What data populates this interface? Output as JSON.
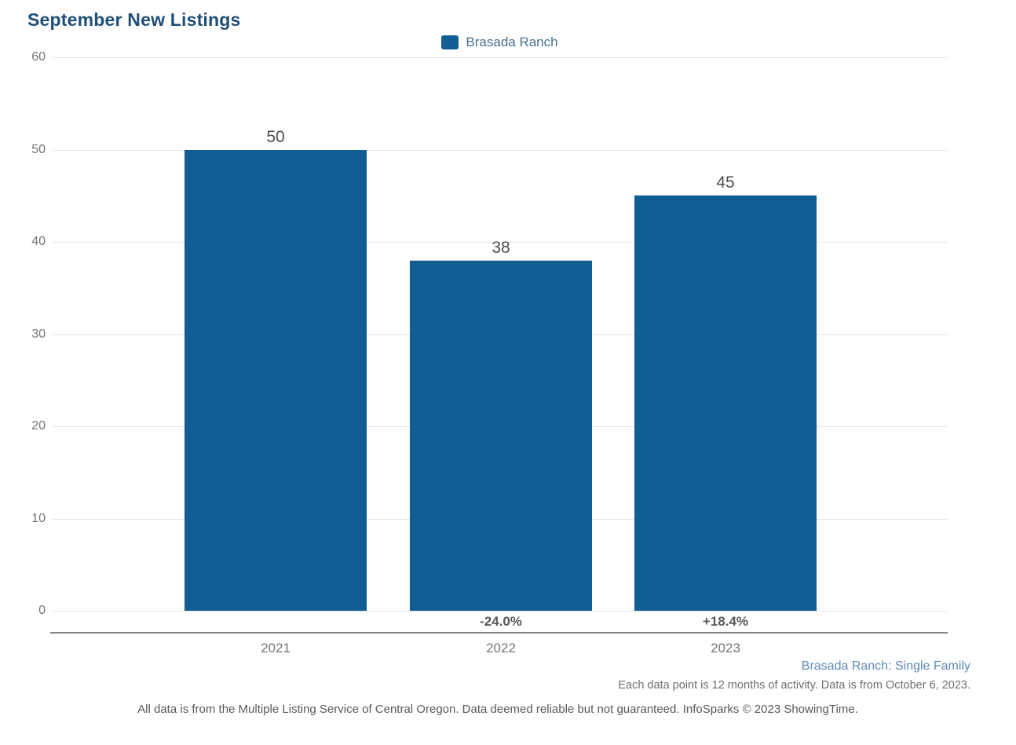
{
  "title": "September New Listings",
  "colors": {
    "bar_blue": "#115e94",
    "title_navy": "#1f4e79",
    "legend_text": "#45708f",
    "footer_link_blue": "#5e8cb8"
  },
  "chart_data": {
    "type": "bar",
    "title": "September New Listings",
    "categories": [
      "2021",
      "2022",
      "2023"
    ],
    "series": [
      {
        "name": "Brasada Ranch",
        "values": [
          50,
          38,
          45
        ]
      }
    ],
    "value_labels": [
      "50",
      "38",
      "45"
    ],
    "change_labels": [
      "",
      "-24.0%",
      "+18.4%"
    ],
    "xlabel": "",
    "ylabel": "",
    "ylim": [
      0,
      60
    ],
    "yticks": [
      0,
      10,
      20,
      30,
      40,
      50,
      60
    ],
    "grid": "horizontal",
    "legend_position": "top-center"
  },
  "footer": {
    "series_scope": "Brasada Ranch: Single Family",
    "data_note": "Each data point is 12 months of activity. Data is from October 6, 2023.",
    "disclaimer": "All data is from the Multiple Listing Service of Central Oregon. Data deemed reliable but not guaranteed. InfoSparks © 2023 ShowingTime."
  }
}
